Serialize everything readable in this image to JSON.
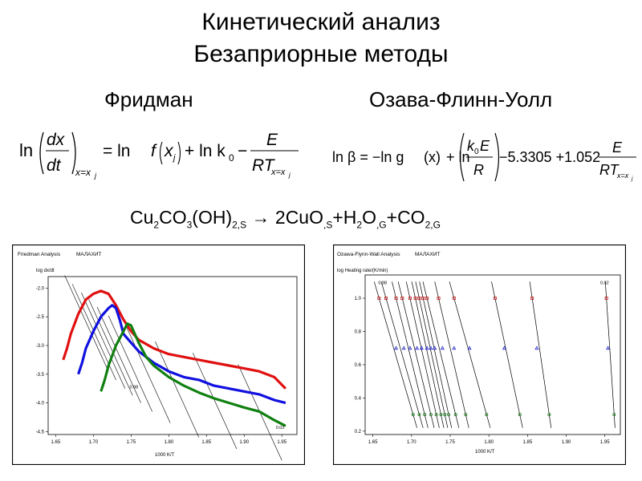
{
  "slide": {
    "title_line1": "Кинетический анализ",
    "title_line2": "Безаприорные методы",
    "method_left": "Фридман",
    "method_right": "Озава-Флинн-Уолл"
  },
  "equations": {
    "friedman": {
      "ln": "ln",
      "dx": "dx",
      "dt": "dt",
      "sub_x_eq_xj": "x=x",
      "sub_j": "j",
      "rhs_ln1": "= ln ",
      "f": "f",
      "xj_x": "x",
      "xj_j": "j",
      "plus_ln_k0": "+ ln k",
      "k0_sub": "0",
      "minus": "−",
      "E": "E",
      "RT": "RT",
      "RT_sub": "x=x",
      "RT_sub_j": "j"
    },
    "ofw": {
      "ln_beta": "ln β = −ln g",
      "x_paren": "(x)",
      "plus_ln": "+ ln",
      "k0E": "k",
      "k0_sub": "0",
      "k0E_E": "E",
      "R": "R",
      "const": "−5.3305 +1.052",
      "E": "E",
      "RT": "RT",
      "RT_sub": "x=x",
      "RT_sub_j": "j"
    },
    "reaction": {
      "p1": "Cu",
      "s1": "2",
      "p2": "CO",
      "s2": "3",
      "p3": "(OH)",
      "s3": "2,S",
      "arrow": " → 2CuO",
      "s4": ",S",
      "p5": "+H",
      "s5": "2",
      "p6": "O",
      "s6": ",G",
      "p7": "+CO",
      "s7": "2,G"
    }
  },
  "chart_data": [
    {
      "type": "line",
      "title": "Friedman Analysis",
      "sample": "МАЛАХИТ",
      "ylabel": "log dx/dt",
      "xlabel": "1000 K/T",
      "xlim": [
        1.64,
        1.97
      ],
      "ylim": [
        -4.55,
        -1.8
      ],
      "x_ticks": [
        "1.65",
        "1.70",
        "1.75",
        "1.80",
        "1.85",
        "1.90",
        "1.95"
      ],
      "y_ticks": [
        "-2.0",
        "-2.5",
        "-3.0",
        "-3.5",
        "-4.0",
        "-4.5"
      ],
      "annotations": [
        "0.98",
        "0.02"
      ],
      "colors": {
        "red": "#e01010",
        "blue": "#1010e0",
        "green": "#108010"
      },
      "series": [
        {
          "color": "red",
          "x": [
            1.66,
            1.665,
            1.67,
            1.68,
            1.69,
            1.7,
            1.71,
            1.72,
            1.73,
            1.74,
            1.75,
            1.76,
            1.78,
            1.8,
            1.82,
            1.84,
            1.86,
            1.88,
            1.9,
            1.92,
            1.94,
            1.955
          ],
          "y": [
            -3.25,
            -3.05,
            -2.8,
            -2.45,
            -2.2,
            -2.1,
            -2.05,
            -2.1,
            -2.3,
            -2.55,
            -2.75,
            -2.9,
            -3.05,
            -3.15,
            -3.2,
            -3.25,
            -3.3,
            -3.35,
            -3.4,
            -3.45,
            -3.55,
            -3.75
          ]
        },
        {
          "color": "blue",
          "x": [
            1.68,
            1.685,
            1.69,
            1.7,
            1.71,
            1.72,
            1.725,
            1.73,
            1.735,
            1.74,
            1.75,
            1.76,
            1.78,
            1.8,
            1.82,
            1.84,
            1.86,
            1.88,
            1.9,
            1.92,
            1.94,
            1.955
          ],
          "y": [
            -3.5,
            -3.3,
            -3.05,
            -2.75,
            -2.5,
            -2.35,
            -2.3,
            -2.35,
            -2.55,
            -2.8,
            -2.95,
            -3.1,
            -3.3,
            -3.45,
            -3.55,
            -3.6,
            -3.7,
            -3.75,
            -3.8,
            -3.85,
            -3.95,
            -4.0
          ]
        },
        {
          "color": "green",
          "x": [
            1.71,
            1.715,
            1.72,
            1.73,
            1.74,
            1.745,
            1.75,
            1.76,
            1.77,
            1.78,
            1.8,
            1.82,
            1.84,
            1.86,
            1.88,
            1.9,
            1.92,
            1.94,
            1.955
          ],
          "y": [
            -3.8,
            -3.6,
            -3.35,
            -3.0,
            -2.75,
            -2.62,
            -2.65,
            -2.95,
            -3.2,
            -3.35,
            -3.55,
            -3.7,
            -3.82,
            -3.92,
            -4.0,
            -4.08,
            -4.15,
            -4.3,
            -4.4
          ]
        }
      ]
    },
    {
      "type": "scatter",
      "title": "Ozawa-Flynn-Wall Analysis",
      "sample": "МАЛАХИТ",
      "ylabel": "log Heating rate/(K/min)",
      "xlabel": "1000 K/T",
      "xlim": [
        1.64,
        1.97
      ],
      "ylim": [
        0.18,
        1.14
      ],
      "x_ticks": [
        "1.65",
        "1.70",
        "1.75",
        "1.80",
        "1.85",
        "1.90",
        "1.95"
      ],
      "y_ticks": [
        "1.0",
        "0.8",
        "0.6",
        "0.4",
        "0.2"
      ],
      "annotations": [
        "0.98",
        "0.02"
      ],
      "levels": [
        1.0,
        0.7,
        0.3
      ],
      "rows": [
        {
          "y": 1.0,
          "marker": "square",
          "color": "#cc2020",
          "x": [
            1.658,
            1.667,
            1.68,
            1.688,
            1.698,
            1.705,
            1.71,
            1.715,
            1.72,
            1.735,
            1.755,
            1.808,
            1.856,
            1.952
          ]
        },
        {
          "y": 0.7,
          "marker": "triangle",
          "color": "#2020cc",
          "x": [
            1.68,
            1.69,
            1.698,
            1.707,
            1.713,
            1.72,
            1.725,
            1.73,
            1.74,
            1.755,
            1.775,
            1.82,
            1.862,
            1.954
          ]
        },
        {
          "y": 0.3,
          "marker": "circle",
          "color": "#208020",
          "x": [
            1.702,
            1.71,
            1.717,
            1.725,
            1.732,
            1.738,
            1.743,
            1.748,
            1.757,
            1.77,
            1.797,
            1.84,
            1.878,
            1.962
          ]
        }
      ]
    }
  ]
}
